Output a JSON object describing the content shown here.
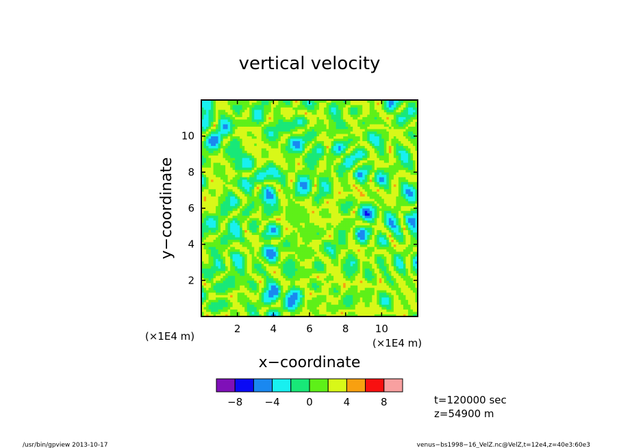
{
  "chart_data": {
    "type": "heatmap",
    "title": "vertical velocity",
    "xlabel": "x−coordinate",
    "ylabel": "y−coordinate",
    "x_unit_label": "(×1E4 m)",
    "y_unit_label": "(×1E4 m)",
    "xlim": [
      0,
      12
    ],
    "ylim": [
      0,
      12
    ],
    "xticks": [
      2,
      4,
      6,
      8,
      10
    ],
    "yticks": [
      2,
      4,
      6,
      8,
      10
    ],
    "xtick_labels": [
      "2",
      "4",
      "6",
      "8",
      "10"
    ],
    "ytick_labels": [
      "2",
      "4",
      "6",
      "8",
      "10"
    ],
    "grid": false,
    "colorbar": {
      "levels": [
        -10,
        -8,
        -6,
        -4,
        -2,
        0,
        2,
        4,
        6,
        8,
        10
      ],
      "tick_values": [
        -8,
        -4,
        0,
        4,
        8
      ],
      "tick_labels": [
        "−8",
        "−4",
        "0",
        "4",
        "8"
      ],
      "colors": [
        "#7f10b8",
        "#0a0af5",
        "#1a88f0",
        "#18f0f0",
        "#18e878",
        "#5ef018",
        "#d8f818",
        "#f8a010",
        "#f81010",
        "#f8a0a0"
      ]
    },
    "annotations": {
      "time": "t=120000 sec",
      "height": "z=54900 m"
    }
  },
  "footer": {
    "left": "/usr/bin/gpview   2013-10-17",
    "right": "venus−bs1998−16_VelZ.nc@VelZ,t=12e4,z=40e3:60e3"
  }
}
